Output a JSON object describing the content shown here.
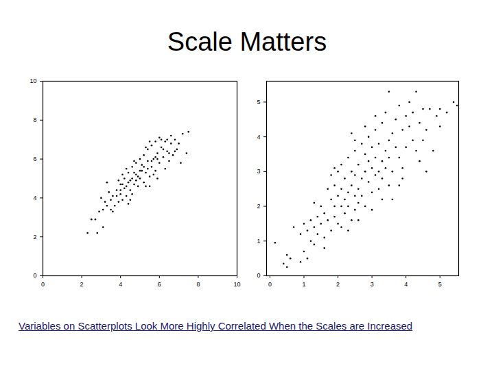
{
  "title": "Scale Matters",
  "caption": "Variables on Scatterplots Look More Highly Correlated When the Scales are Increased",
  "chart_data": [
    {
      "type": "scatter",
      "color": "#000000",
      "grid": false,
      "xlim": [
        0,
        10
      ],
      "ylim": [
        0,
        10
      ],
      "xticks": [
        0,
        2,
        4,
        6,
        8,
        10
      ],
      "yticks": [
        0,
        2,
        4,
        6,
        8,
        10
      ],
      "x": [
        2.3,
        2.8,
        2.7,
        3.1,
        2.9,
        3.2,
        3.0,
        3.3,
        3.5,
        3.4,
        3.6,
        3.7,
        3.8,
        3.9,
        3.6,
        4.0,
        4.1,
        4.2,
        4.0,
        4.3,
        4.4,
        4.1,
        4.5,
        4.6,
        4.3,
        4.7,
        4.8,
        4.5,
        4.9,
        5.0,
        4.8,
        5.1,
        5.2,
        5.0,
        5.3,
        5.4,
        5.2,
        5.5,
        5.6,
        5.4,
        5.7,
        5.8,
        5.6,
        5.9,
        6.0,
        6.1,
        5.9,
        6.2,
        6.3,
        6.0,
        6.4,
        6.5,
        6.6,
        6.3,
        6.7,
        6.8,
        6.9,
        7.0,
        7.2,
        7.4,
        7.5,
        7.1,
        6.6,
        5.5,
        4.7,
        3.9,
        4.4,
        3.3,
        4.2,
        4.6,
        5.1,
        5.7,
        6.1,
        5.3,
        4.9,
        5.8,
        3.8,
        4.3,
        4.8,
        5.2,
        5.6,
        6.2,
        4.0,
        4.5,
        5.0,
        5.4,
        3.5,
        4.6,
        5.9,
        6.4,
        3.1,
        2.5,
        4.4,
        5.5,
        6.5,
        4.1,
        4.7,
        5.3,
        5.8,
        6.8
      ],
      "y": [
        2.2,
        2.2,
        2.9,
        2.5,
        3.3,
        3.8,
        4.0,
        3.6,
        3.9,
        4.3,
        4.1,
        3.6,
        4.4,
        3.8,
        3.3,
        4.2,
        3.9,
        4.5,
        4.7,
        4.1,
        4.8,
        5.2,
        4.4,
        5.0,
        5.5,
        4.7,
        5.2,
        3.9,
        4.6,
        5.0,
        5.8,
        5.4,
        4.8,
        6.0,
        5.3,
        5.9,
        6.2,
        5.1,
        5.6,
        6.5,
        6.0,
        5.4,
        6.7,
        6.3,
        5.8,
        6.6,
        5.0,
        6.1,
        6.9,
        7.1,
        6.4,
        5.9,
        6.8,
        5.5,
        6.2,
        7.0,
        6.5,
        6.8,
        7.3,
        6.3,
        7.4,
        5.8,
        7.2,
        4.6,
        5.9,
        4.9,
        3.7,
        4.8,
        5.0,
        4.2,
        5.7,
        5.2,
        7.0,
        6.6,
        5.1,
        6.9,
        4.1,
        4.6,
        4.9,
        5.6,
        5.9,
        6.5,
        4.4,
        4.9,
        5.4,
        5.5,
        3.4,
        5.6,
        6.0,
        7.0,
        3.4,
        2.9,
        5.3,
        6.9,
        6.3,
        4.7,
        5.3,
        4.6,
        6.1,
        6.4
      ]
    },
    {
      "type": "scatter",
      "color": "#000000",
      "grid": false,
      "xlim": [
        -0.1,
        5.55
      ],
      "ylim": [
        0,
        5.6
      ],
      "xticks": [
        0,
        1,
        2,
        3,
        4,
        5
      ],
      "yticks": [
        0,
        1,
        2,
        3,
        4,
        5
      ],
      "x": [
        0.15,
        0.4,
        0.5,
        0.5,
        0.6,
        0.9,
        0.9,
        1.0,
        1.1,
        1.0,
        1.2,
        1.2,
        1.3,
        1.3,
        1.4,
        1.4,
        1.5,
        1.5,
        1.6,
        1.6,
        1.7,
        1.7,
        1.8,
        1.8,
        1.8,
        1.9,
        1.9,
        1.9,
        2.0,
        2.0,
        2.0,
        2.1,
        2.1,
        2.1,
        2.2,
        2.2,
        2.2,
        2.3,
        2.3,
        2.3,
        2.4,
        2.4,
        2.4,
        2.5,
        2.5,
        2.5,
        2.5,
        2.6,
        2.6,
        2.6,
        2.7,
        2.7,
        2.7,
        2.8,
        2.8,
        2.8,
        2.9,
        2.9,
        2.9,
        3.0,
        3.0,
        3.0,
        3.1,
        3.1,
        3.1,
        3.2,
        3.2,
        3.2,
        3.3,
        3.3,
        3.3,
        3.4,
        3.4,
        3.4,
        3.5,
        3.5,
        3.5,
        3.6,
        3.6,
        3.7,
        3.7,
        3.8,
        3.8,
        3.9,
        3.9,
        4.0,
        4.0,
        4.1,
        4.1,
        4.2,
        4.2,
        4.3,
        4.3,
        4.4,
        4.5,
        4.5,
        4.6,
        4.7,
        4.8,
        4.9,
        5.0,
        5.0,
        5.2,
        5.4,
        5.5,
        1.6,
        2.3,
        2.6,
        3.0,
        3.6,
        3.9,
        4.4,
        1.3,
        1.9,
        2.5,
        2.8,
        1.1,
        0.7,
        2.1,
        3.3,
        3.8,
        4.6,
        2.4,
        3.1,
        3.5
      ],
      "y": [
        0.95,
        0.35,
        0.25,
        0.6,
        0.5,
        0.4,
        1.2,
        1.5,
        1.3,
        0.7,
        1.0,
        1.6,
        1.4,
        0.9,
        1.7,
        1.2,
        2.0,
        1.5,
        1.8,
        1.1,
        2.5,
        1.6,
        2.2,
        1.3,
        2.9,
        2.0,
        2.6,
        1.7,
        2.3,
        3.0,
        1.5,
        2.5,
        2.0,
        3.2,
        2.2,
        2.8,
        1.8,
        2.4,
        3.4,
        2.0,
        2.6,
        3.0,
        1.6,
        2.3,
        2.9,
        3.6,
        1.9,
        2.5,
        3.2,
        2.1,
        3.8,
        2.8,
        2.3,
        3.0,
        3.5,
        2.0,
        2.7,
        3.3,
        4.0,
        3.1,
        2.4,
        3.7,
        2.9,
        3.4,
        4.2,
        3.0,
        3.8,
        2.5,
        3.3,
        4.4,
        2.8,
        3.6,
        3.1,
        4.7,
        3.9,
        3.4,
        2.6,
        4.1,
        3.0,
        3.7,
        4.5,
        3.4,
        4.9,
        4.2,
        3.1,
        4.6,
        3.7,
        4.3,
        5.0,
        3.9,
        4.7,
        5.3,
        3.6,
        4.4,
        4.8,
        3.9,
        4.2,
        4.8,
        3.6,
        4.6,
        4.3,
        4.8,
        4.7,
        5.0,
        4.9,
        0.8,
        1.3,
        1.6,
        1.9,
        2.2,
        2.8,
        3.3,
        2.1,
        3.1,
        3.9,
        4.3,
        0.5,
        1.4,
        1.4,
        2.2,
        2.6,
        3.0,
        4.1,
        4.6,
        5.3
      ]
    }
  ]
}
